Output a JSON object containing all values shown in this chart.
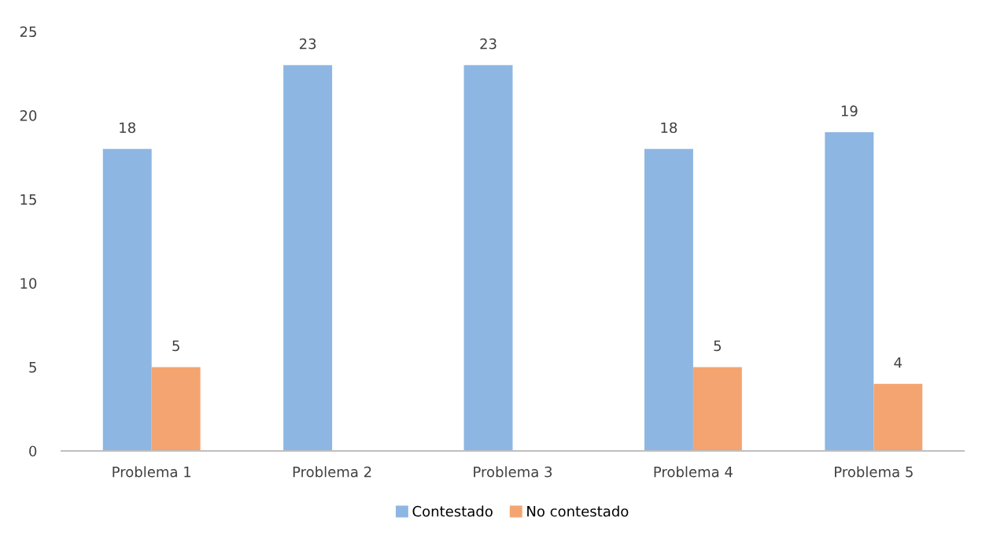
{
  "chart_data": {
    "type": "bar",
    "categories": [
      "Problema 1",
      "Problema 2",
      "Problema 3",
      "Problema 4",
      "Problema 5"
    ],
    "series": [
      {
        "name": "Contestado",
        "color": "#8db6e2",
        "values": [
          18,
          23,
          23,
          18,
          19
        ],
        "value_labels": [
          "18",
          "23",
          "23",
          "18",
          "19"
        ]
      },
      {
        "name": "No contestado",
        "color": "#f4a470",
        "values": [
          5,
          null,
          null,
          5,
          4
        ],
        "value_labels": [
          "5",
          null,
          null,
          "5",
          "4"
        ]
      }
    ],
    "ylim": [
      0,
      25
    ],
    "yticks": [
      0,
      5,
      10,
      15,
      20,
      25
    ],
    "grid": false,
    "legend": "bottom"
  }
}
